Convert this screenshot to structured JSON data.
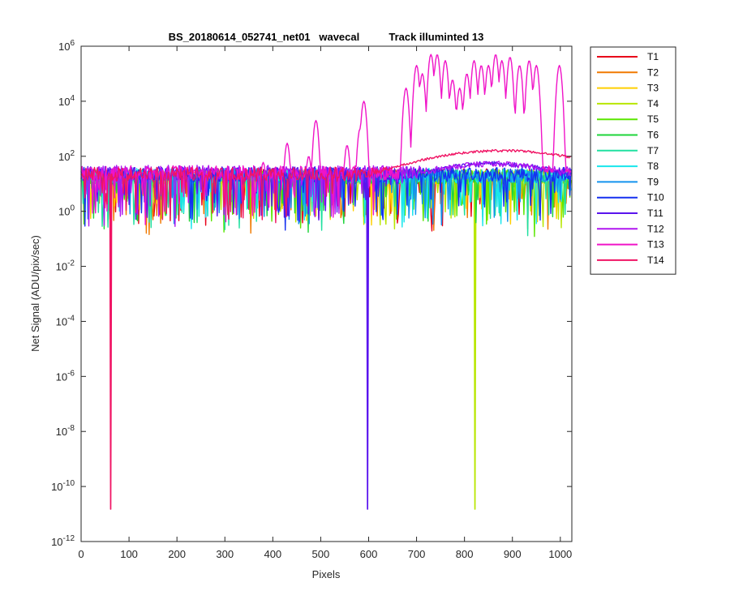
{
  "chart_data": {
    "type": "line",
    "title": "BS_20180614_052741_net01   wavecal          Track illuminted 13",
    "xlabel": "Pixels",
    "ylabel": "Net Signal (ADU/pix/sec)",
    "x_scale": "linear",
    "y_scale": "log",
    "xlim": [
      0,
      1024
    ],
    "ylim": [
      1e-12,
      1000000.0
    ],
    "x_ticks": [
      0,
      100,
      200,
      300,
      400,
      500,
      600,
      700,
      800,
      900,
      1000
    ],
    "y_tick_exponents": [
      -12,
      -10,
      -8,
      -6,
      -4,
      -2,
      0,
      2,
      4,
      6
    ],
    "y_tick_base": "10",
    "grid": false,
    "legend_position": "outside-right",
    "series": [
      {
        "name": "T1",
        "color": "#e8001a",
        "level": 20,
        "deep_dips": []
      },
      {
        "name": "T2",
        "color": "#f07a00",
        "level": 18,
        "deep_dips": []
      },
      {
        "name": "T3",
        "color": "#ffcf00",
        "level": 18,
        "deep_dips": []
      },
      {
        "name": "T4",
        "color": "#b8e600",
        "level": 18,
        "deep_dips": [
          {
            "x": 822,
            "y": 1.5e-11
          }
        ]
      },
      {
        "name": "T5",
        "color": "#5ae600",
        "level": 18,
        "deep_dips": []
      },
      {
        "name": "T6",
        "color": "#1ed43a",
        "level": 18,
        "deep_dips": []
      },
      {
        "name": "T7",
        "color": "#20e0a0",
        "level": 18,
        "deep_dips": []
      },
      {
        "name": "T8",
        "color": "#18e6ec",
        "level": 20,
        "deep_dips": []
      },
      {
        "name": "T9",
        "color": "#1493ee",
        "level": 20,
        "deep_dips": []
      },
      {
        "name": "T10",
        "color": "#1530f0",
        "level": 22,
        "deep_dips": []
      },
      {
        "name": "T11",
        "color": "#5a14ee",
        "level": 24,
        "deep_dips": [
          {
            "x": 598,
            "y": 1.5e-11
          }
        ]
      },
      {
        "name": "T12",
        "color": "#b016f0",
        "level": 26,
        "deep_dips": []
      },
      {
        "name": "T13",
        "color": "#f014c8",
        "level": 25,
        "deep_dips": [],
        "peaks": [
          [
            380,
            60
          ],
          [
            430,
            300
          ],
          [
            475,
            100
          ],
          [
            490,
            2000
          ],
          [
            555,
            250
          ],
          [
            582,
            1000
          ],
          [
            590,
            10000
          ],
          [
            678,
            30000
          ],
          [
            700,
            200000
          ],
          [
            712,
            100000
          ],
          [
            730,
            500000
          ],
          [
            743,
            500000
          ],
          [
            760,
            300000
          ],
          [
            775,
            60000
          ],
          [
            790,
            30000
          ],
          [
            805,
            100000
          ],
          [
            820,
            300000
          ],
          [
            835,
            200000
          ],
          [
            850,
            200000
          ],
          [
            865,
            500000
          ],
          [
            878,
            300000
          ],
          [
            895,
            400000
          ],
          [
            915,
            200000
          ],
          [
            935,
            300000
          ],
          [
            950,
            200000
          ],
          [
            998,
            200000
          ]
        ]
      },
      {
        "name": "T14",
        "color": "#f01464",
        "level": 22,
        "deep_dips": [
          {
            "x": 62,
            "y": 1.5e-11
          }
        ],
        "hump": {
          "center": 880,
          "peak": 160,
          "width": 190
        }
      }
    ]
  }
}
